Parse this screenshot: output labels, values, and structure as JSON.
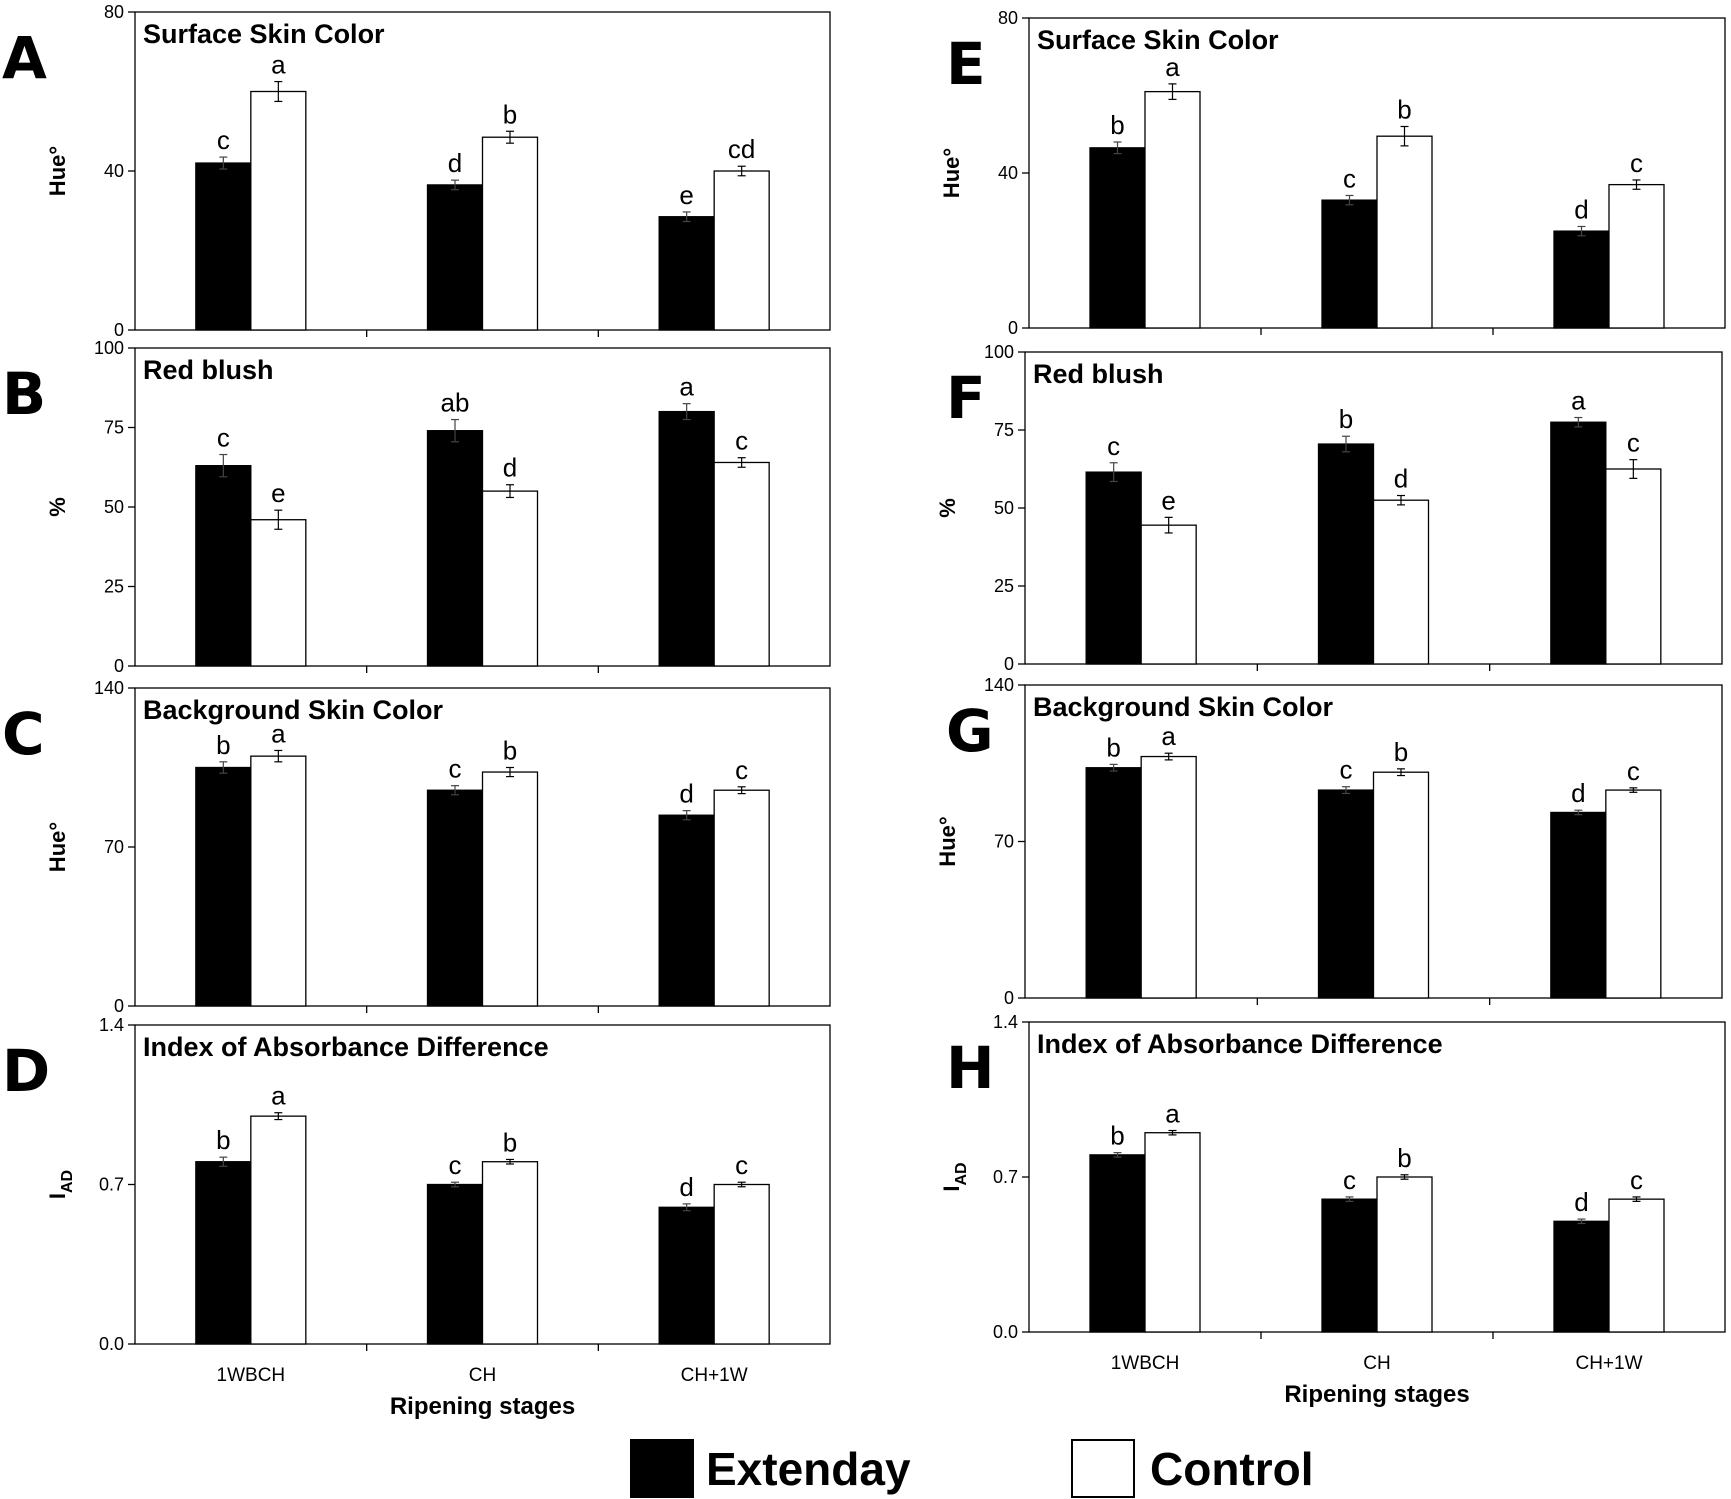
{
  "legend": {
    "extenday": "Extenday",
    "control": "Control"
  },
  "colors": {
    "extenday": "#000000",
    "control": "#ffffff"
  },
  "chart_data": [
    {
      "panel": "A",
      "type": "bar",
      "title": "Surface Skin Color",
      "ylabel": "Hue°",
      "ylim": [
        0,
        80
      ],
      "yticks": [
        "0",
        "40",
        "80"
      ],
      "categories": [
        "1WBCH",
        "CH",
        "CH+1W"
      ],
      "xlabel": "",
      "series": [
        {
          "name": "Extenday",
          "values": [
            42,
            36.5,
            28.5
          ],
          "errors": [
            1.5,
            1.2,
            1.2
          ],
          "letters": [
            "c",
            "d",
            "e"
          ]
        },
        {
          "name": "Control",
          "values": [
            60,
            48.5,
            40
          ],
          "errors": [
            2.5,
            1.5,
            1.2
          ],
          "letters": [
            "a",
            "b",
            "cd"
          ]
        }
      ]
    },
    {
      "panel": "B",
      "type": "bar",
      "title": "Red blush",
      "ylabel": "%",
      "ylim": [
        0,
        100
      ],
      "yticks": [
        "0",
        "25",
        "50",
        "75",
        "100"
      ],
      "categories": [
        "1WBCH",
        "CH",
        "CH+1W"
      ],
      "xlabel": "",
      "series": [
        {
          "name": "Extenday",
          "values": [
            63,
            74,
            80
          ],
          "errors": [
            3.5,
            3.5,
            2.5
          ],
          "letters": [
            "c",
            "ab",
            "a"
          ]
        },
        {
          "name": "Control",
          "values": [
            46,
            55,
            64
          ],
          "errors": [
            3,
            2,
            1.5
          ],
          "letters": [
            "e",
            "d",
            "c"
          ]
        }
      ]
    },
    {
      "panel": "C",
      "type": "bar",
      "title": "Background Skin Color",
      "ylabel": "Hue°",
      "ylim": [
        0,
        140
      ],
      "yticks": [
        "0",
        "70",
        "140"
      ],
      "categories": [
        "1WBCH",
        "CH",
        "CH+1W"
      ],
      "xlabel": "",
      "series": [
        {
          "name": "Extenday",
          "values": [
            105,
            95,
            84
          ],
          "errors": [
            2.5,
            2,
            2
          ],
          "letters": [
            "b",
            "c",
            "d"
          ]
        },
        {
          "name": "Control",
          "values": [
            110,
            103,
            95
          ],
          "errors": [
            2.5,
            2,
            1.5
          ],
          "letters": [
            "a",
            "b",
            "c"
          ]
        }
      ]
    },
    {
      "panel": "D",
      "type": "bar",
      "title": "Index of Absorbance Difference",
      "ylabel": "I",
      "ylabel_sub": "AD",
      "ylim": [
        0,
        1.4
      ],
      "yticks": [
        "0.0",
        "0.7",
        "1.4"
      ],
      "categories": [
        "1WBCH",
        "CH",
        "CH+1W"
      ],
      "xlabel": "Ripening stages",
      "series": [
        {
          "name": "Extenday",
          "values": [
            0.8,
            0.7,
            0.6
          ],
          "errors": [
            0.02,
            0.01,
            0.015
          ],
          "letters": [
            "b",
            "c",
            "d"
          ]
        },
        {
          "name": "Control",
          "values": [
            1.0,
            0.8,
            0.7
          ],
          "errors": [
            0.015,
            0.01,
            0.01
          ],
          "letters": [
            "a",
            "b",
            "c"
          ]
        }
      ]
    },
    {
      "panel": "E",
      "type": "bar",
      "title": "Surface Skin Color",
      "ylabel": "Hue°",
      "ylim": [
        0,
        80
      ],
      "yticks": [
        "0",
        "40",
        "80"
      ],
      "categories": [
        "1WBCH",
        "CH",
        "CH+1W"
      ],
      "xlabel": "",
      "series": [
        {
          "name": "Extenday",
          "values": [
            46.5,
            33,
            25
          ],
          "errors": [
            1.5,
            1.2,
            1.2
          ],
          "letters": [
            "b",
            "c",
            "d"
          ]
        },
        {
          "name": "Control",
          "values": [
            61,
            49.5,
            37
          ],
          "errors": [
            2,
            2.5,
            1.2
          ],
          "letters": [
            "a",
            "b",
            "c"
          ]
        }
      ]
    },
    {
      "panel": "F",
      "type": "bar",
      "title": "Red blush",
      "ylabel": "%",
      "ylim": [
        0,
        100
      ],
      "yticks": [
        "0",
        "25",
        "50",
        "75",
        "100"
      ],
      "categories": [
        "1WBCH",
        "CH",
        "CH+1W"
      ],
      "xlabel": "",
      "series": [
        {
          "name": "Extenday",
          "values": [
            61.5,
            70.5,
            77.5
          ],
          "errors": [
            3,
            2.5,
            1.5
          ],
          "letters": [
            "c",
            "b",
            "a"
          ]
        },
        {
          "name": "Control",
          "values": [
            44.5,
            52.5,
            62.5
          ],
          "errors": [
            2.5,
            1.5,
            3
          ],
          "letters": [
            "e",
            "d",
            "c"
          ]
        }
      ]
    },
    {
      "panel": "G",
      "type": "bar",
      "title": "Background Skin Color",
      "ylabel": "Hue°",
      "ylim": [
        0,
        140
      ],
      "yticks": [
        "0",
        "70",
        "140"
      ],
      "categories": [
        "1WBCH",
        "CH",
        "CH+1W"
      ],
      "xlabel": "",
      "series": [
        {
          "name": "Extenday",
          "values": [
            103,
            93,
            83
          ],
          "errors": [
            1.5,
            1.5,
            1
          ],
          "letters": [
            "b",
            "c",
            "d"
          ]
        },
        {
          "name": "Control",
          "values": [
            108,
            101,
            93
          ],
          "errors": [
            1.5,
            1.5,
            1
          ],
          "letters": [
            "a",
            "b",
            "c"
          ]
        }
      ]
    },
    {
      "panel": "H",
      "type": "bar",
      "title": "Index of Absorbance Difference",
      "ylabel": "I",
      "ylabel_sub": "AD",
      "ylim": [
        0,
        1.4
      ],
      "yticks": [
        "0.0",
        "0.7",
        "1.4"
      ],
      "categories": [
        "1WBCH",
        "CH",
        "CH+1W"
      ],
      "xlabel": "Ripening stages",
      "series": [
        {
          "name": "Extenday",
          "values": [
            0.8,
            0.6,
            0.5
          ],
          "errors": [
            0.01,
            0.01,
            0.01
          ],
          "letters": [
            "b",
            "c",
            "d"
          ]
        },
        {
          "name": "Control",
          "values": [
            0.9,
            0.7,
            0.6
          ],
          "errors": [
            0.01,
            0.01,
            0.01
          ],
          "letters": [
            "a",
            "b",
            "c"
          ]
        }
      ]
    }
  ]
}
